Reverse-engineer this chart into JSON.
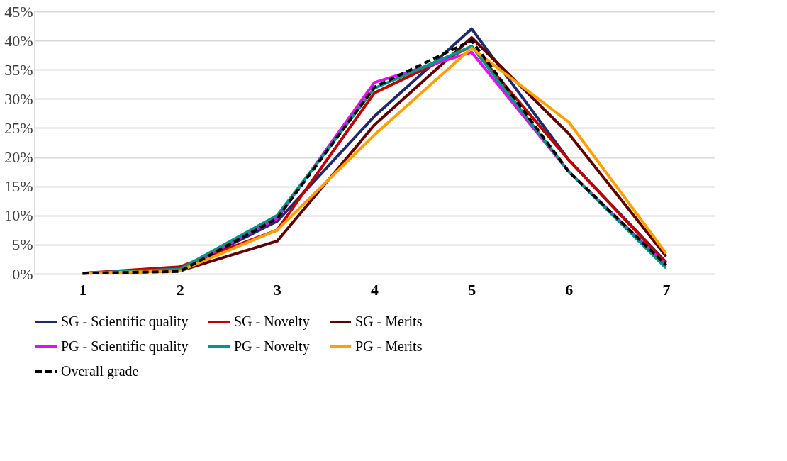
{
  "chart_data": {
    "type": "line",
    "categories": [
      "1",
      "2",
      "3",
      "4",
      "5",
      "6",
      "7"
    ],
    "series": [
      {
        "name": "SG - Scientific quality",
        "color": "#1f2a6e",
        "values": [
          0.1,
          0.6,
          9,
          27,
          42,
          19.5,
          2
        ]
      },
      {
        "name": "SG - Novelty",
        "color": "#c00000",
        "values": [
          0.1,
          1.2,
          7.5,
          31,
          39,
          19.5,
          1.8
        ]
      },
      {
        "name": "SG - Merits",
        "color": "#600000",
        "values": [
          0.1,
          0.5,
          5.6,
          25.5,
          40.5,
          24,
          3
        ]
      },
      {
        "name": "PG - Scientific quality",
        "color": "#e010f0",
        "values": [
          0.1,
          0.6,
          9.5,
          32.8,
          38,
          17.5,
          1.5
        ]
      },
      {
        "name": "PG - Novelty",
        "color": "#009688",
        "values": [
          0.1,
          0.8,
          10,
          31.8,
          39,
          17.5,
          1
        ]
      },
      {
        "name": "PG - Merits",
        "color": "#ffa000",
        "values": [
          0.1,
          0.5,
          7.5,
          23.8,
          38.7,
          26,
          3.5
        ]
      },
      {
        "name": "Overall grade",
        "color": "#000000",
        "values": [
          0.1,
          0.4,
          9.5,
          32,
          40,
          17.5,
          1.5
        ],
        "line_style": "dashed"
      }
    ],
    "ylim": [
      0,
      45
    ],
    "yticks": [
      {
        "value": 0,
        "label": "0%"
      },
      {
        "value": 5,
        "label": "5%"
      },
      {
        "value": 10,
        "label": "10%"
      },
      {
        "value": 15,
        "label": "15%"
      },
      {
        "value": 20,
        "label": "20%"
      },
      {
        "value": 25,
        "label": "25%"
      },
      {
        "value": 30,
        "label": "30%"
      },
      {
        "value": 35,
        "label": "35%"
      },
      {
        "value": 40,
        "label": "40%"
      },
      {
        "value": 45,
        "label": "45%"
      }
    ],
    "grid": "y",
    "legend": "bottom",
    "line_style": "solid",
    "marker": "none"
  }
}
